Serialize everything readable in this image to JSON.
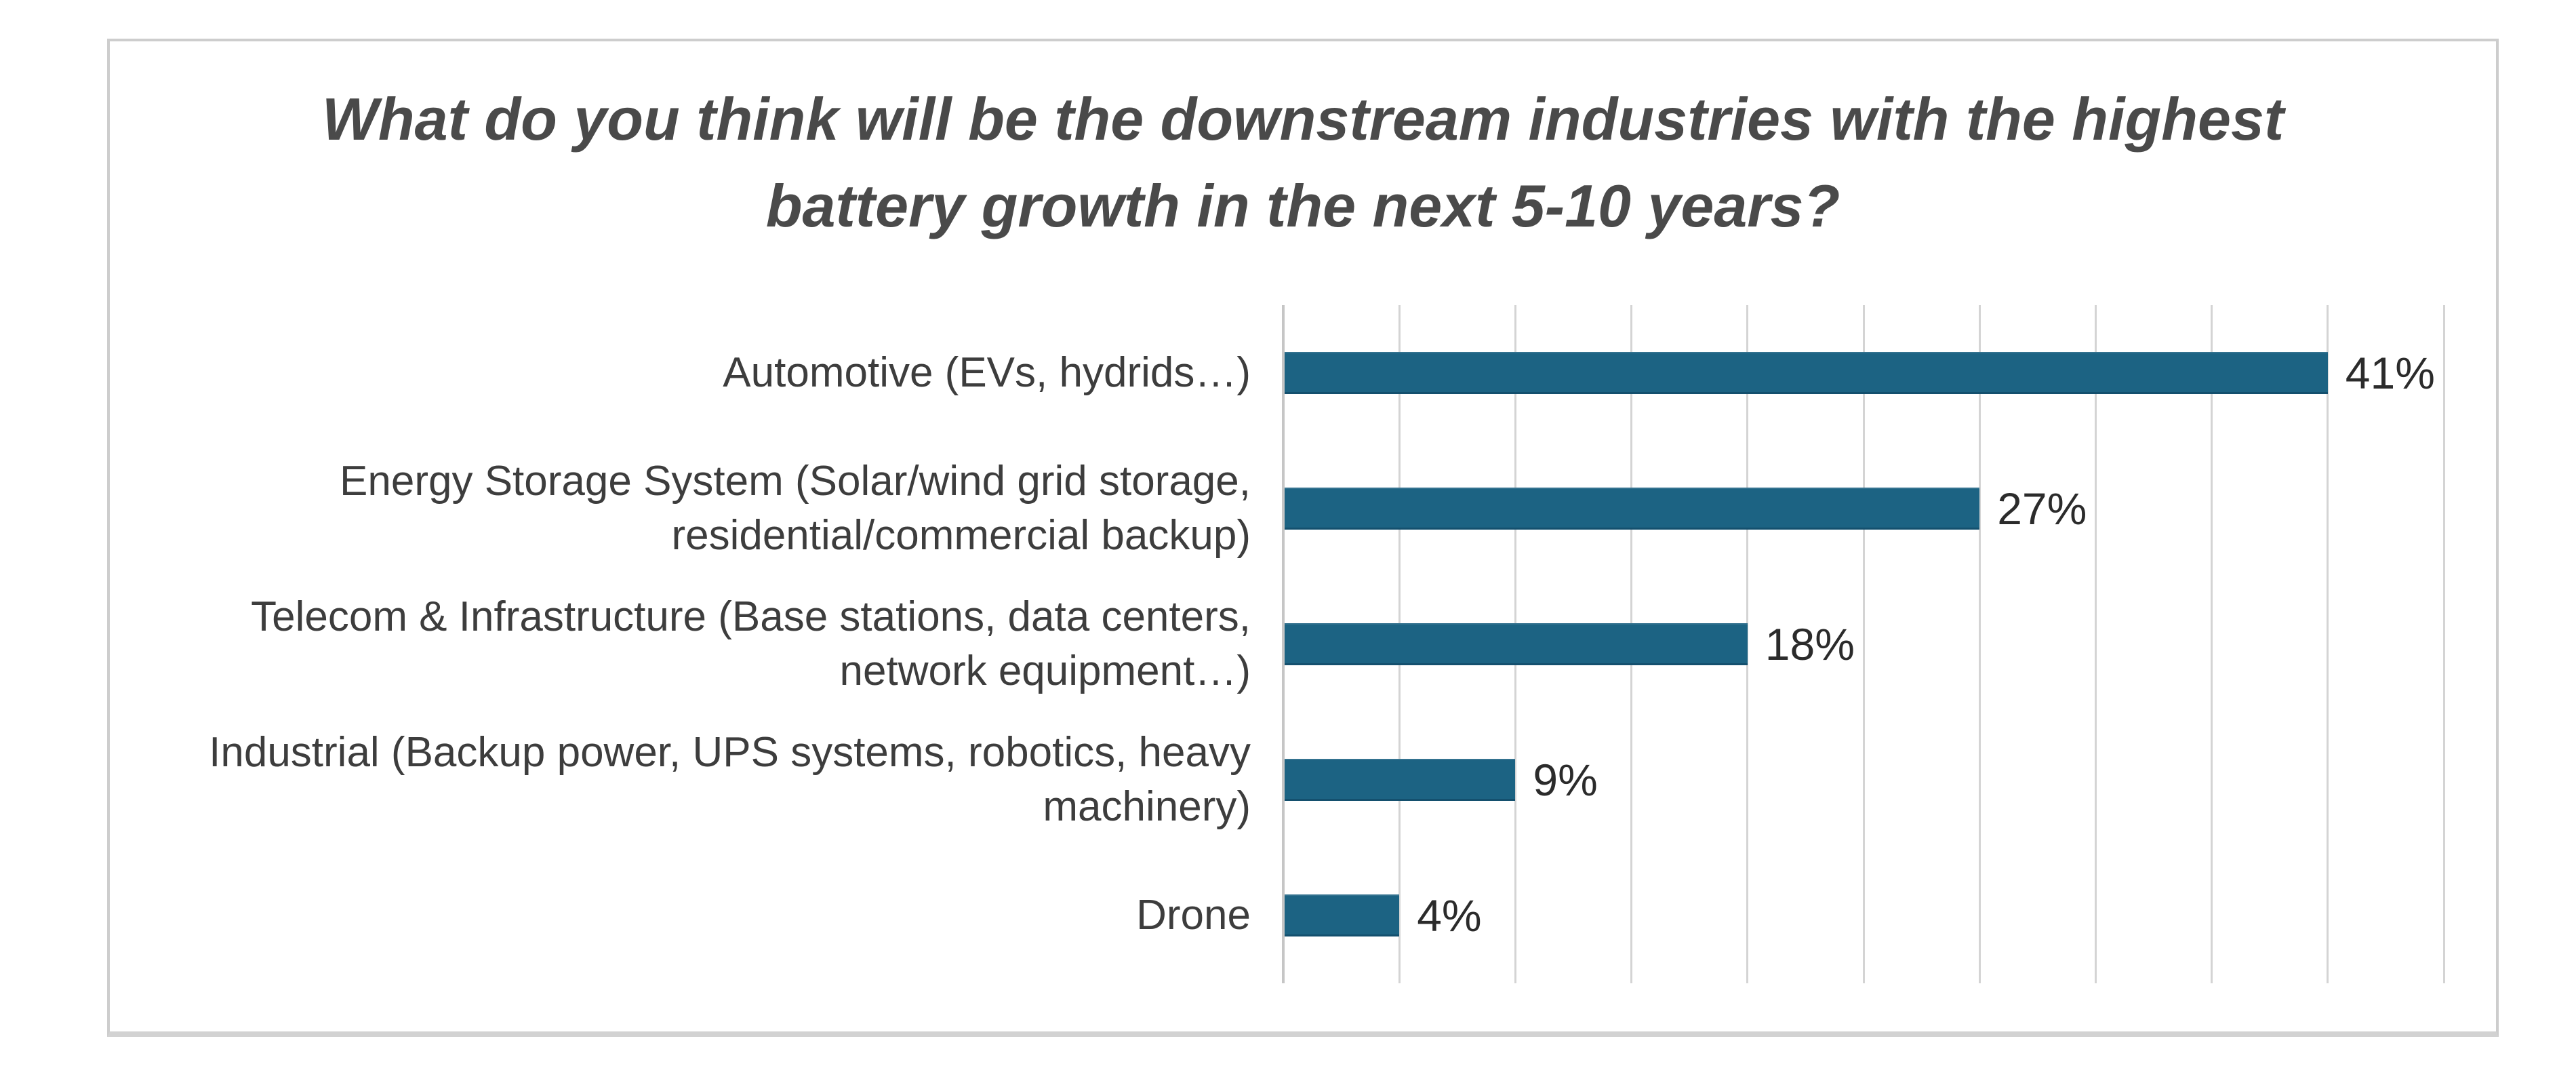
{
  "chart_data": {
    "type": "bar",
    "orientation": "horizontal",
    "title": "What do you think will be the downstream industries with the highest battery growth in the next 5-10 years?",
    "title_lines": [
      "What do you think will be the downstream industries with the highest",
      "battery growth in the next 5-10 years?"
    ],
    "categories": [
      "Automotive (EVs, hydrids…)",
      "Energy Storage System (Solar/wind grid storage, residential/commercial backup)",
      "Telecom & Infrastructure (Base stations, data centers, network equipment…)",
      "Industrial (Backup power, UPS systems, robotics, heavy machinery)",
      "Drone"
    ],
    "values": [
      41,
      27,
      18,
      9,
      4
    ],
    "bars": [
      {
        "id": "automotive",
        "label_lines": [
          "Automotive (EVs, hydrids…)"
        ],
        "value": 41,
        "value_label": "41%",
        "length_gridline_units": 9
      },
      {
        "id": "energy-storage-system",
        "label_lines": [
          "Energy Storage System (Solar/wind grid storage,",
          "residential/commercial backup)"
        ],
        "value": 27,
        "value_label": "27%",
        "length_gridline_units": 6
      },
      {
        "id": "telecom-infrastructure",
        "label_lines": [
          "Telecom & Infrastructure (Base stations, data centers,",
          "network equipment…)"
        ],
        "value": 18,
        "value_label": "18%",
        "length_gridline_units": 4
      },
      {
        "id": "industrial",
        "label_lines": [
          "Industrial (Backup power, UPS systems, robotics, heavy",
          "machinery)"
        ],
        "value": 9,
        "value_label": "9%",
        "length_gridline_units": 2
      },
      {
        "id": "drone",
        "label_lines": [
          "Drone"
        ],
        "value": 4,
        "value_label": "4%",
        "length_gridline_units": 1
      }
    ],
    "xlabel": "",
    "ylabel": "",
    "x_axis": {
      "tick_labels_visible": false,
      "gridline_count": 11,
      "range_gridline_units": [
        0,
        10
      ],
      "bars_end_on_gridlines": true
    },
    "grid": true,
    "legend": false,
    "colors": {
      "bar": "#1c6383",
      "title": "#4a4a4a",
      "category_label": "#3d3d3d",
      "value_label": "#2b2b2b",
      "gridline": "#d4d4d4",
      "frame_border": "#cdcdcd",
      "background": "#ffffff"
    }
  }
}
